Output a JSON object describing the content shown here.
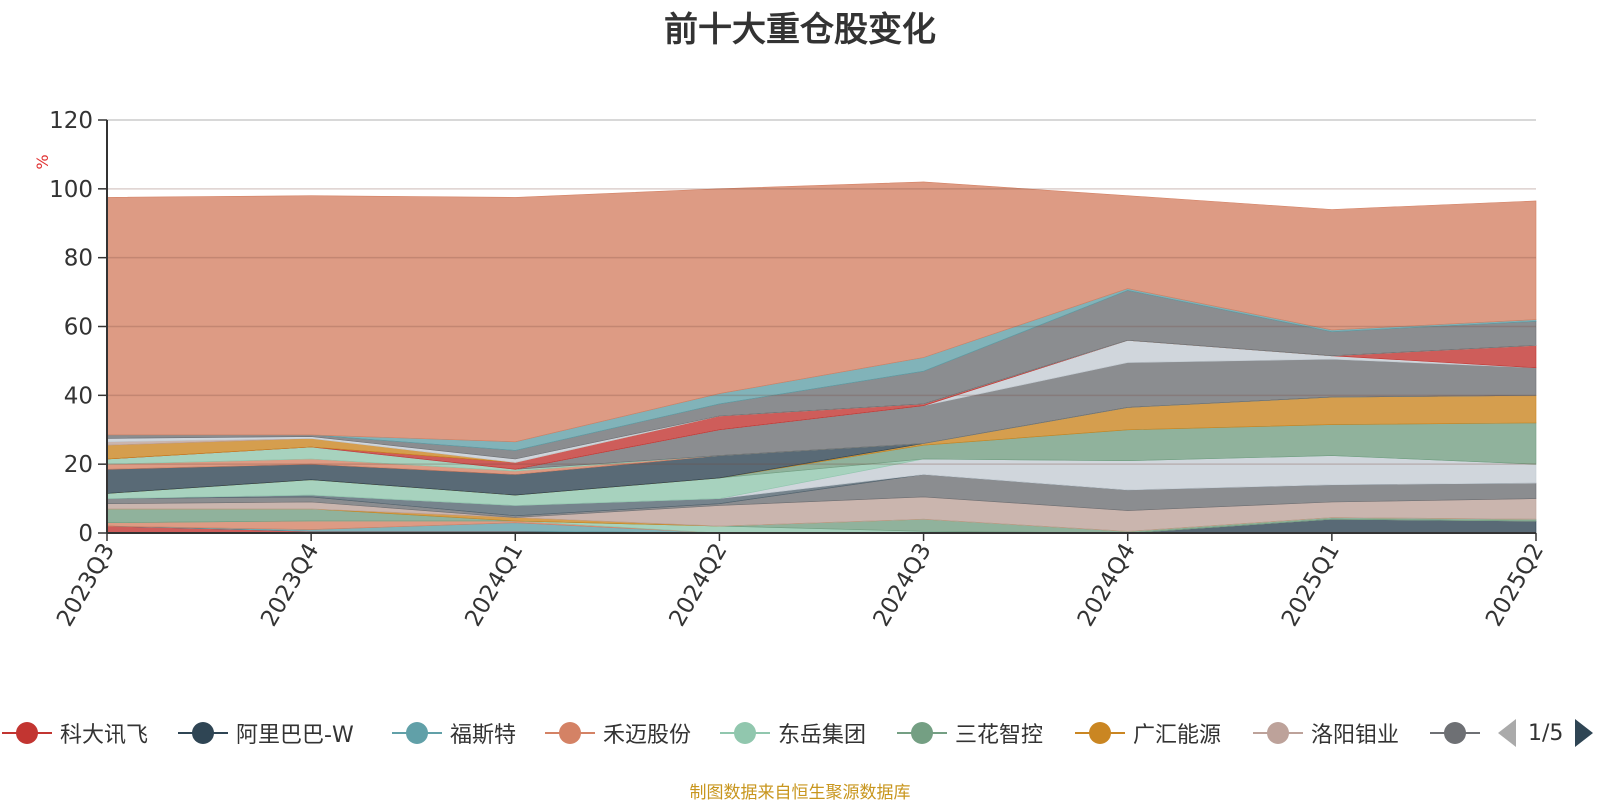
{
  "chart_data": {
    "type": "area",
    "title": "前十大重仓股变化",
    "ylabel": "%",
    "xlabel": "",
    "ylim": [
      0,
      120
    ],
    "y_ticks": [
      0,
      20,
      40,
      60,
      80,
      100,
      120
    ],
    "x": [
      "2023Q3",
      "2023Q4",
      "2024Q1",
      "2024Q2",
      "2024Q3",
      "2024Q4",
      "2025Q1",
      "2025Q2"
    ],
    "stacked": true,
    "series": [
      {
        "name": "科大讯飞",
        "color": "#c23531",
        "values": [
          2.0,
          0.5,
          0.5,
          0.0,
          0.0,
          0.0,
          0.0,
          0.0
        ]
      },
      {
        "name": "阿里巴巴-W",
        "color": "#2f4554",
        "values": [
          0.0,
          0.0,
          0.0,
          0.0,
          0.0,
          0.0,
          4.0,
          3.5
        ]
      },
      {
        "name": "福斯特",
        "color": "#61a0a8",
        "values": [
          0.0,
          0.5,
          2.5,
          0.0,
          0.0,
          0.0,
          0.0,
          0.0
        ]
      },
      {
        "name": "禾迈股份",
        "color": "#d48265",
        "values": [
          1.0,
          2.5,
          0.5,
          0.0,
          0.0,
          0.0,
          0.0,
          0.0
        ]
      },
      {
        "name": "东岳集团",
        "color": "#91c7ae",
        "values": [
          0.0,
          0.0,
          0.0,
          2.0,
          0.5,
          0.0,
          0.0,
          0.0
        ]
      },
      {
        "name": "三花智控",
        "color": "#749f83",
        "values": [
          4.0,
          3.5,
          0.0,
          0.0,
          3.5,
          0.5,
          0.5,
          0.5
        ]
      },
      {
        "name": "广汇能源",
        "color": "#ca8622",
        "values": [
          0.0,
          0.0,
          1.0,
          0.0,
          0.0,
          0.0,
          0.0,
          0.0
        ]
      },
      {
        "name": "洛阳钼业",
        "color": "#bda29a",
        "values": [
          1.5,
          2.0,
          0.0,
          6.0,
          6.5,
          6.0,
          4.5,
          6.0
        ]
      },
      {
        "name": "",
        "color": "#6e7074",
        "values": [
          1.5,
          1.5,
          0.5,
          0.5,
          6.5,
          6.0,
          5.0,
          4.5
        ]
      },
      {
        "name": "",
        "color": "#546570",
        "values": [
          0.0,
          0.5,
          3.0,
          1.5,
          0.0,
          0.0,
          0.0,
          0.0
        ]
      },
      {
        "name": "",
        "color": "#c4ccd3",
        "values": [
          0.0,
          0.0,
          0.0,
          0.0,
          4.5,
          8.5,
          8.5,
          5.5
        ]
      },
      {
        "name": "",
        "color": "#91c7ae",
        "values": [
          1.5,
          4.5,
          3.0,
          6.0,
          0.0,
          0.0,
          0.0,
          0.0
        ]
      },
      {
        "name": "",
        "color": "#749f83",
        "values": [
          0.0,
          0.0,
          0.0,
          0.0,
          4.0,
          9.0,
          9.0,
          12.0
        ]
      },
      {
        "name": "",
        "color": "#ca8622",
        "values": [
          0.0,
          0.0,
          0.0,
          0.0,
          0.5,
          6.5,
          8.0,
          8.0
        ]
      },
      {
        "name": "",
        "color": "#2f4554",
        "values": [
          7.0,
          4.5,
          6.0,
          6.5,
          0.0,
          0.0,
          0.0,
          0.0
        ]
      },
      {
        "name": "",
        "color": "#d48265",
        "values": [
          1.5,
          1.5,
          1.0,
          0.0,
          0.0,
          0.0,
          0.0,
          0.0
        ]
      },
      {
        "name": "",
        "color": "#91c7ae",
        "values": [
          1.5,
          3.5,
          0.5,
          0.0,
          0.0,
          0.0,
          0.0,
          0.0
        ]
      },
      {
        "name": "",
        "color": "#6e7074",
        "values": [
          0.0,
          0.0,
          0.0,
          7.5,
          11.0,
          13.0,
          11.0,
          8.0
        ]
      },
      {
        "name": "",
        "color": "#c4ccd3",
        "values": [
          0.0,
          0.0,
          0.0,
          0.0,
          0.0,
          6.5,
          1.0,
          0.0
        ]
      },
      {
        "name": "",
        "color": "#c23531",
        "values": [
          0.0,
          0.0,
          2.0,
          4.0,
          0.5,
          0.0,
          0.0,
          6.5
        ]
      },
      {
        "name": "",
        "color": "#ca8622",
        "values": [
          4.0,
          2.5,
          0.0,
          0.0,
          0.0,
          0.0,
          0.0,
          0.0
        ]
      },
      {
        "name": "",
        "color": "#bda29a",
        "values": [
          1.0,
          0.0,
          0.0,
          0.0,
          0.0,
          0.0,
          0.0,
          0.0
        ]
      },
      {
        "name": "",
        "color": "#c4ccd3",
        "values": [
          1.0,
          0.5,
          1.0,
          0.0,
          0.0,
          0.0,
          0.0,
          0.0
        ]
      },
      {
        "name": "",
        "color": "#6e7074",
        "values": [
          1.0,
          0.5,
          2.5,
          3.5,
          9.5,
          14.5,
          7.0,
          7.0
        ]
      },
      {
        "name": "",
        "color": "#61a0a8",
        "values": [
          0.0,
          0.0,
          2.5,
          3.0,
          4.0,
          0.5,
          0.5,
          0.5
        ]
      },
      {
        "name": "",
        "color": "#d48265",
        "values": [
          69.0,
          69.5,
          71.0,
          59.5,
          51.0,
          27.0,
          35.0,
          34.5
        ]
      }
    ]
  },
  "legend": {
    "items": [
      {
        "label": "科大讯飞",
        "color": "#c23531",
        "line": "#c23531"
      },
      {
        "label": "阿里巴巴-W",
        "color": "#2f4554",
        "line": "#2f4554"
      },
      {
        "label": "福斯特",
        "color": "#61a0a8",
        "line": "#61a0a8"
      },
      {
        "label": "禾迈股份",
        "color": "#d48265",
        "line": "#d48265"
      },
      {
        "label": "东岳集团",
        "color": "#91c7ae",
        "line": "#91c7ae"
      },
      {
        "label": "三花智控",
        "color": "#749f83",
        "line": "#749f83"
      },
      {
        "label": "广汇能源",
        "color": "#ca8622",
        "line": "#ca8622"
      },
      {
        "label": "洛阳钼业",
        "color": "#bda29a",
        "line": "#bda29a"
      },
      {
        "label": "",
        "color": "#6e7074",
        "line": "#6e7074"
      }
    ],
    "page": "1/5"
  },
  "source_note": "制图数据来自恒生聚源数据库"
}
